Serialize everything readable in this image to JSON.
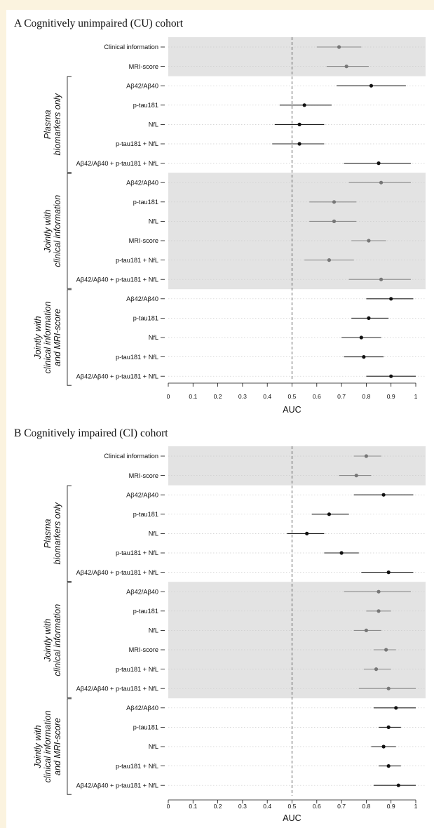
{
  "chart_data": [
    {
      "type": "scatter",
      "title": "A Cognitively unimpaired (CU) cohort",
      "xlabel": "AUC",
      "xlim": [
        0,
        1
      ],
      "xticks": [
        "0",
        "0.1",
        "0.2",
        "0.3",
        "0.4",
        "0.5",
        "0.6",
        "0.7",
        "0.8",
        "0.9",
        "1"
      ],
      "reference_line": 0.5,
      "groups": [
        {
          "label": "",
          "shaded": true,
          "rows": [
            {
              "label": "Clinical information",
              "auc": 0.69,
              "ci": [
                0.6,
                0.78
              ]
            },
            {
              "label": "MRI-score",
              "auc": 0.72,
              "ci": [
                0.64,
                0.81
              ]
            }
          ]
        },
        {
          "label": [
            "Plasma",
            "biomarkers only"
          ],
          "shaded": false,
          "rows": [
            {
              "label": "Aβ42/Aβ40",
              "auc": 0.82,
              "ci": [
                0.68,
                0.96
              ]
            },
            {
              "label": "p-tau181",
              "auc": 0.55,
              "ci": [
                0.45,
                0.66
              ]
            },
            {
              "label": "NfL",
              "auc": 0.53,
              "ci": [
                0.43,
                0.63
              ]
            },
            {
              "label": "p-tau181 + NfL",
              "auc": 0.53,
              "ci": [
                0.42,
                0.63
              ]
            },
            {
              "label": "Aβ42/Aβ40 + p-tau181 + NfL",
              "auc": 0.85,
              "ci": [
                0.71,
                0.98
              ]
            }
          ]
        },
        {
          "label": [
            "Jointly with",
            "clinical information"
          ],
          "shaded": true,
          "rows": [
            {
              "label": "Aβ42/Aβ40",
              "auc": 0.86,
              "ci": [
                0.73,
                0.98
              ]
            },
            {
              "label": "p-tau181",
              "auc": 0.67,
              "ci": [
                0.57,
                0.76
              ]
            },
            {
              "label": "NfL",
              "auc": 0.67,
              "ci": [
                0.57,
                0.76
              ]
            },
            {
              "label": "MRI-score",
              "auc": 0.81,
              "ci": [
                0.74,
                0.88
              ]
            },
            {
              "label": "p-tau181 + NfL",
              "auc": 0.65,
              "ci": [
                0.55,
                0.75
              ]
            },
            {
              "label": "Aβ42/Aβ40 + p-tau181 + NfL",
              "auc": 0.86,
              "ci": [
                0.73,
                0.98
              ]
            }
          ]
        },
        {
          "label": [
            "Jointly with",
            "clinical information",
            "and MRI-score"
          ],
          "shaded": false,
          "rows": [
            {
              "label": "Aβ42/Aβ40",
              "auc": 0.9,
              "ci": [
                0.8,
                0.99
              ]
            },
            {
              "label": "p-tau181",
              "auc": 0.81,
              "ci": [
                0.74,
                0.89
              ]
            },
            {
              "label": "NfL",
              "auc": 0.78,
              "ci": [
                0.7,
                0.86
              ]
            },
            {
              "label": "p-tau181 + NfL",
              "auc": 0.79,
              "ci": [
                0.71,
                0.87
              ]
            },
            {
              "label": "Aβ42/Aβ40 + p-tau181 + NfL",
              "auc": 0.9,
              "ci": [
                0.8,
                1.0
              ]
            }
          ]
        }
      ]
    },
    {
      "type": "scatter",
      "title": "B Cognitively impaired (CI) cohort",
      "xlabel": "AUC",
      "xlim": [
        0,
        1
      ],
      "xticks": [
        "0",
        "0.1",
        "0.2",
        "0.3",
        "0.4",
        "0.5",
        "0.6",
        "0.7",
        "0.8",
        "0.9",
        "1"
      ],
      "reference_line": 0.5,
      "groups": [
        {
          "label": "",
          "shaded": true,
          "rows": [
            {
              "label": "Clinical information",
              "auc": 0.8,
              "ci": [
                0.75,
                0.86
              ]
            },
            {
              "label": "MRI-score",
              "auc": 0.76,
              "ci": [
                0.69,
                0.82
              ]
            }
          ]
        },
        {
          "label": [
            "Plasma",
            "biomarkers only"
          ],
          "shaded": false,
          "rows": [
            {
              "label": "Aβ42/Aβ40",
              "auc": 0.87,
              "ci": [
                0.75,
                0.99
              ]
            },
            {
              "label": "p-tau181",
              "auc": 0.65,
              "ci": [
                0.58,
                0.73
              ]
            },
            {
              "label": "NfL",
              "auc": 0.56,
              "ci": [
                0.48,
                0.63
              ]
            },
            {
              "label": "p-tau181 + NfL",
              "auc": 0.7,
              "ci": [
                0.63,
                0.77
              ]
            },
            {
              "label": "Aβ42/Aβ40 + p-tau181 + NfL",
              "auc": 0.89,
              "ci": [
                0.78,
                0.99
              ]
            }
          ]
        },
        {
          "label": [
            "Jointly with",
            "clinical information"
          ],
          "shaded": true,
          "rows": [
            {
              "label": "Aβ42/Aβ40",
              "auc": 0.85,
              "ci": [
                0.71,
                0.98
              ]
            },
            {
              "label": "p-tau181",
              "auc": 0.85,
              "ci": [
                0.8,
                0.9
              ]
            },
            {
              "label": "NfL",
              "auc": 0.8,
              "ci": [
                0.75,
                0.86
              ]
            },
            {
              "label": "MRI-score",
              "auc": 0.88,
              "ci": [
                0.83,
                0.92
              ]
            },
            {
              "label": "p-tau181 + NfL",
              "auc": 0.84,
              "ci": [
                0.79,
                0.9
              ]
            },
            {
              "label": "Aβ42/Aβ40 + p-tau181 + NfL",
              "auc": 0.89,
              "ci": [
                0.77,
                1.0
              ]
            }
          ]
        },
        {
          "label": [
            "Jointly with",
            "clinical information",
            "and MRI-score"
          ],
          "shaded": false,
          "rows": [
            {
              "label": "Aβ42/Aβ40",
              "auc": 0.92,
              "ci": [
                0.83,
                1.0
              ]
            },
            {
              "label": "p-tau181",
              "auc": 0.89,
              "ci": [
                0.85,
                0.94
              ]
            },
            {
              "label": "NfL",
              "auc": 0.87,
              "ci": [
                0.82,
                0.92
              ]
            },
            {
              "label": "p-tau181 + NfL",
              "auc": 0.89,
              "ci": [
                0.85,
                0.94
              ]
            },
            {
              "label": "Aβ42/Aβ40 + p-tau181 + NfL",
              "auc": 0.93,
              "ci": [
                0.83,
                1.0
              ]
            }
          ]
        }
      ]
    }
  ],
  "colors": {
    "shade": "#e3e3e3",
    "ink": "#111111",
    "shaded_marker": "#777777",
    "shaded_line": "#8a8a8a",
    "plain_marker": "#111111",
    "plain_line": "#222222",
    "reference_line": "#444444",
    "gridline": "#cccccc"
  }
}
